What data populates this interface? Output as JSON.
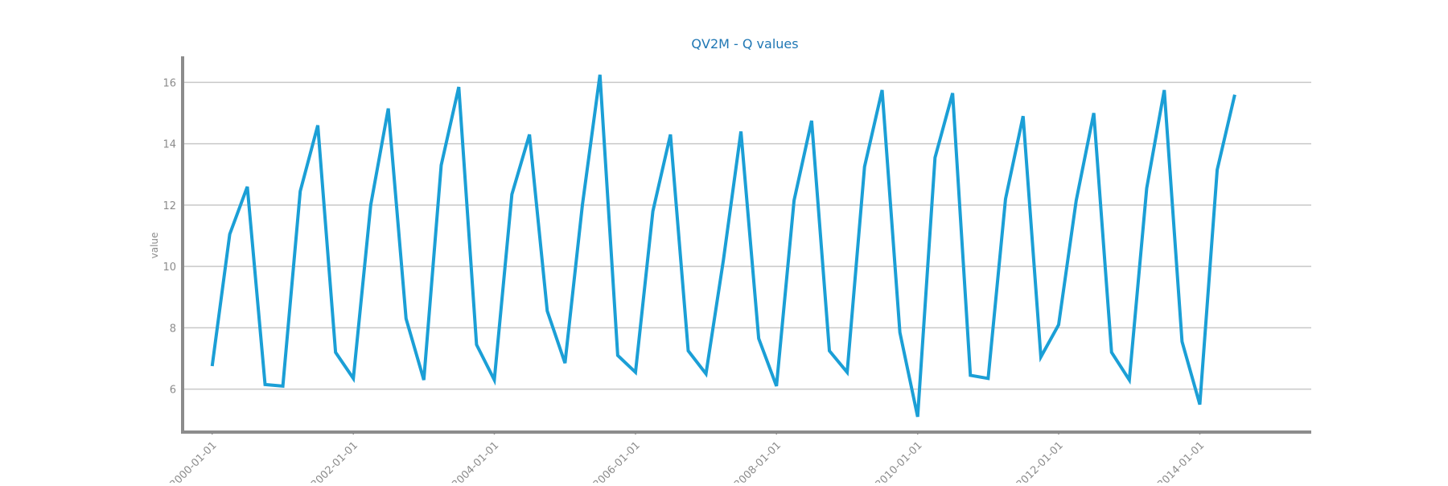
{
  "chart_data": {
    "type": "line",
    "title": "QV2M - Q values",
    "xlabel": "",
    "ylabel": "value",
    "grid": true,
    "ylim": [
      4.6,
      16.85
    ],
    "xlim": [
      "1999-08-01",
      "2015-08-01"
    ],
    "y_ticks": [
      6,
      8,
      10,
      12,
      14,
      16
    ],
    "x_ticks": [
      "2000-01-01",
      "2002-01-01",
      "2004-01-01",
      "2006-01-01",
      "2008-01-01",
      "2010-01-01",
      "2012-01-01",
      "2014-01-01"
    ],
    "series": [
      {
        "color": "#1b9fd6",
        "x": [
          "2000-01-01",
          "2000-04-01",
          "2000-07-01",
          "2000-10-01",
          "2001-01-01",
          "2001-04-01",
          "2001-07-01",
          "2001-10-01",
          "2002-01-01",
          "2002-04-01",
          "2002-07-01",
          "2002-10-01",
          "2003-01-01",
          "2003-04-01",
          "2003-07-01",
          "2003-10-01",
          "2004-01-01",
          "2004-04-01",
          "2004-07-01",
          "2004-10-01",
          "2005-01-01",
          "2005-04-01",
          "2005-07-01",
          "2005-10-01",
          "2006-01-01",
          "2006-04-01",
          "2006-07-01",
          "2006-10-01",
          "2007-01-01",
          "2007-04-01",
          "2007-07-01",
          "2007-10-01",
          "2008-01-01",
          "2008-04-01",
          "2008-07-01",
          "2008-10-01",
          "2009-01-01",
          "2009-04-01",
          "2009-07-01",
          "2009-10-01",
          "2010-01-01",
          "2010-04-01",
          "2010-07-01",
          "2010-10-01",
          "2011-01-01",
          "2011-04-01",
          "2011-07-01",
          "2011-10-01",
          "2012-01-01",
          "2012-04-01",
          "2012-07-01",
          "2012-10-01",
          "2013-01-01",
          "2013-04-01",
          "2013-07-01",
          "2013-10-01",
          "2014-01-01",
          "2014-04-01",
          "2014-07-01"
        ],
        "values": [
          6.75,
          11.05,
          12.6,
          6.15,
          6.1,
          12.45,
          14.6,
          7.2,
          6.35,
          12.0,
          15.15,
          8.3,
          6.3,
          13.3,
          15.85,
          7.45,
          6.3,
          12.35,
          14.3,
          8.55,
          6.85,
          12.0,
          16.25,
          7.1,
          6.55,
          11.8,
          14.3,
          7.25,
          6.5,
          10.2,
          14.4,
          7.65,
          6.1,
          12.15,
          14.75,
          7.25,
          6.55,
          13.25,
          15.75,
          7.85,
          5.1,
          13.55,
          15.65,
          6.45,
          6.35,
          12.2,
          14.9,
          7.05,
          8.1,
          12.15,
          15.0,
          7.2,
          6.3,
          12.55,
          15.75,
          7.55,
          5.5,
          13.15,
          15.6
        ]
      }
    ]
  }
}
